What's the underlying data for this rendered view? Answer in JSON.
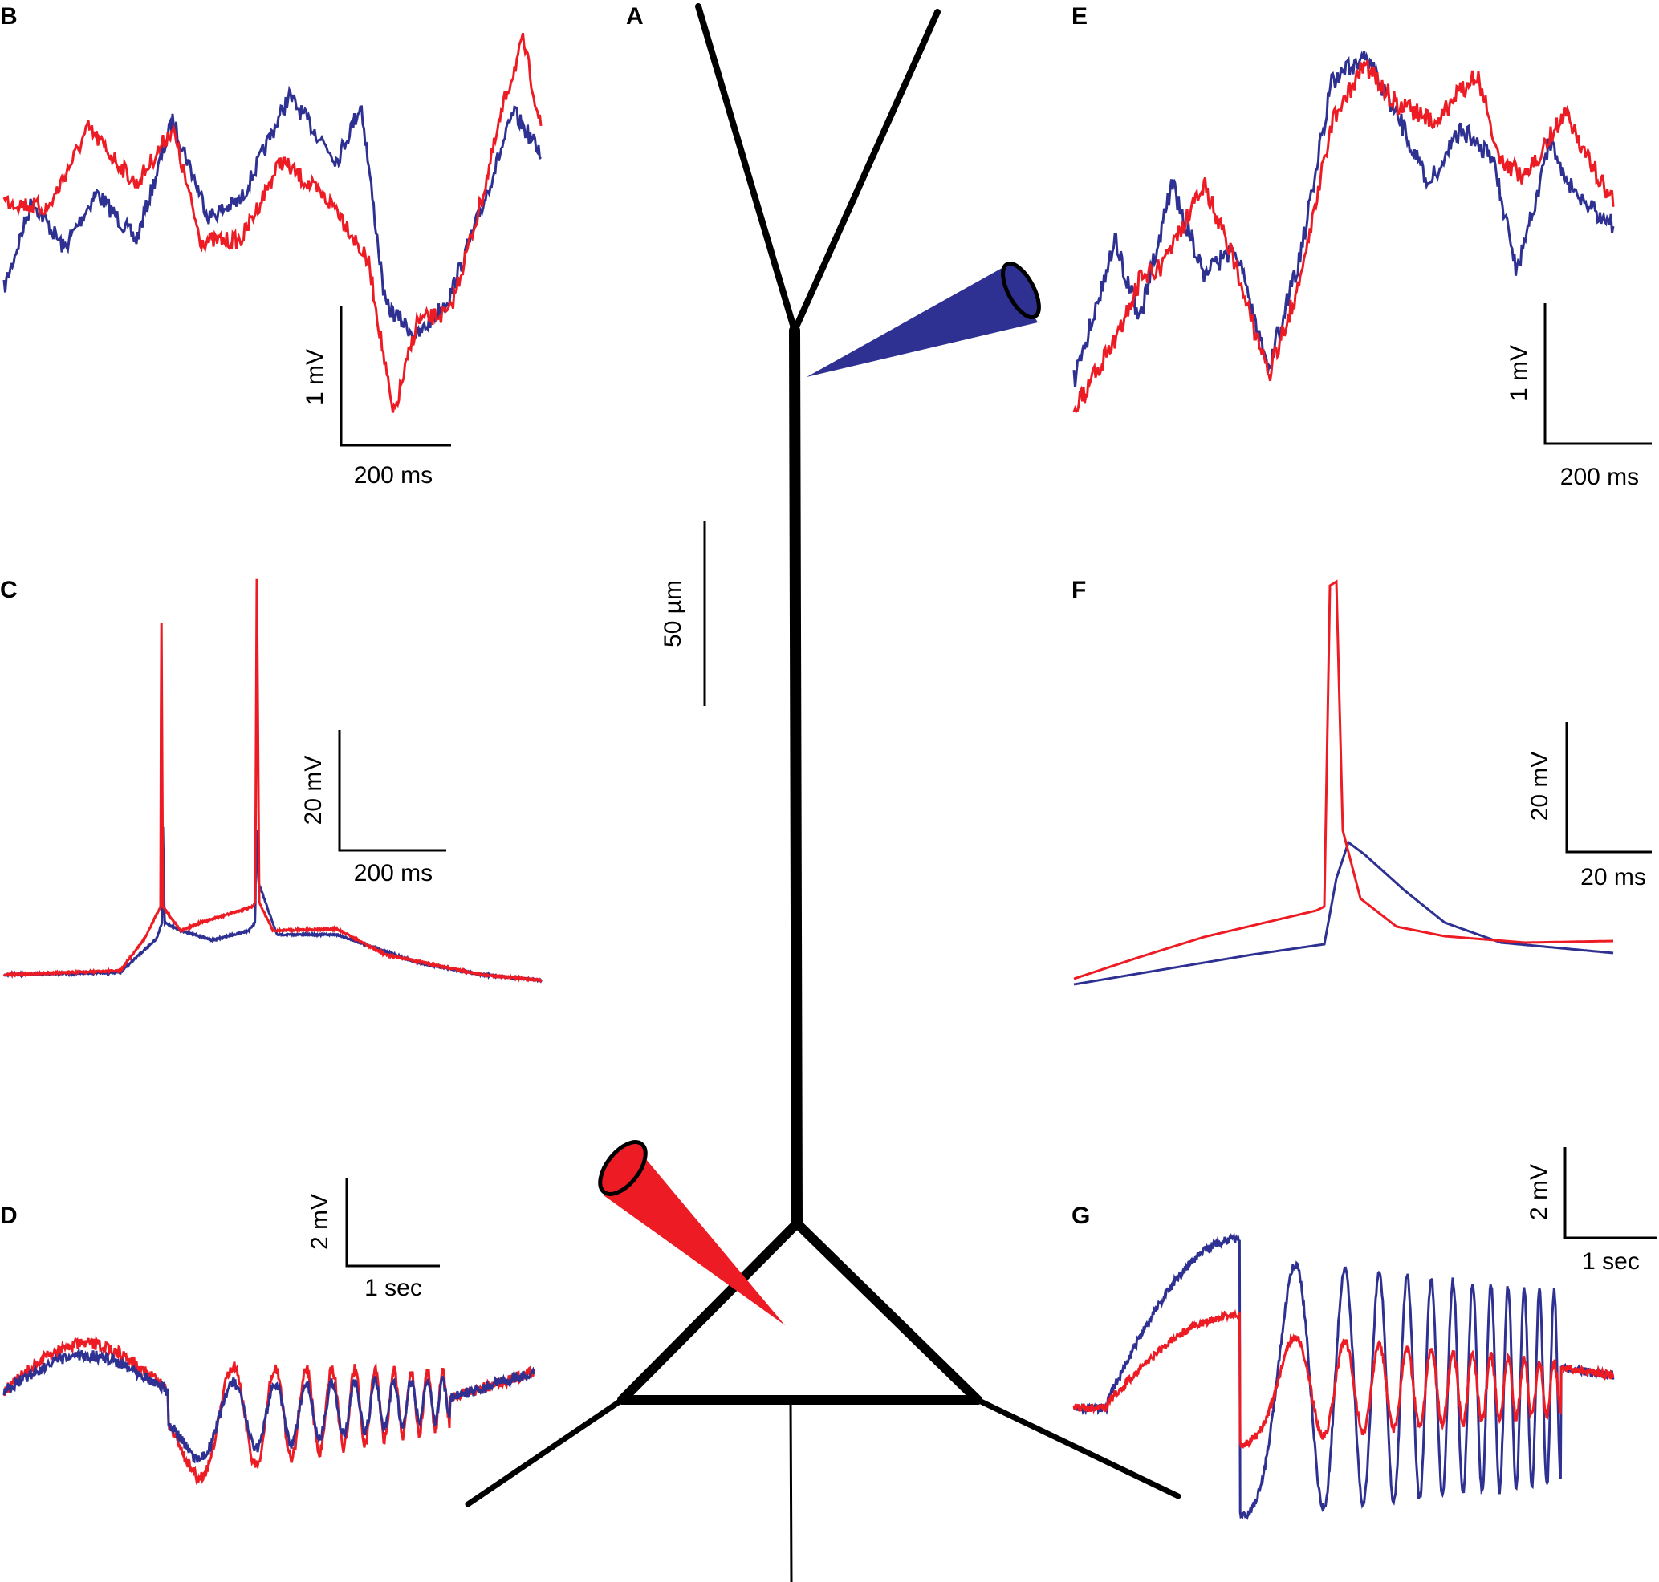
{
  "figure": {
    "colors": {
      "dendrite": "#2e3192",
      "soma": "#ed1c24",
      "ink": "#000000"
    },
    "panels": {
      "A": {
        "label": "A",
        "scalebar": "50 µm",
        "neuron": "pyramidal-neuron",
        "electrodes": [
          "dendritic-electrode",
          "somatic-electrode"
        ]
      },
      "B": {
        "label": "B",
        "scale_v": "1 mV",
        "scale_t": "200 ms"
      },
      "C": {
        "label": "C",
        "scale_v": "20 mV",
        "scale_t": "200 ms"
      },
      "D": {
        "label": "D",
        "scale_v": "2 mV",
        "scale_t": "1 sec"
      },
      "E": {
        "label": "E",
        "scale_v": "1 mV",
        "scale_t": "200 ms"
      },
      "F": {
        "label": "F",
        "scale_v": "20 mV",
        "scale_t": "20 ms"
      },
      "G": {
        "label": "G",
        "scale_v": "2 mV",
        "scale_t": "1 sec"
      }
    }
  }
}
